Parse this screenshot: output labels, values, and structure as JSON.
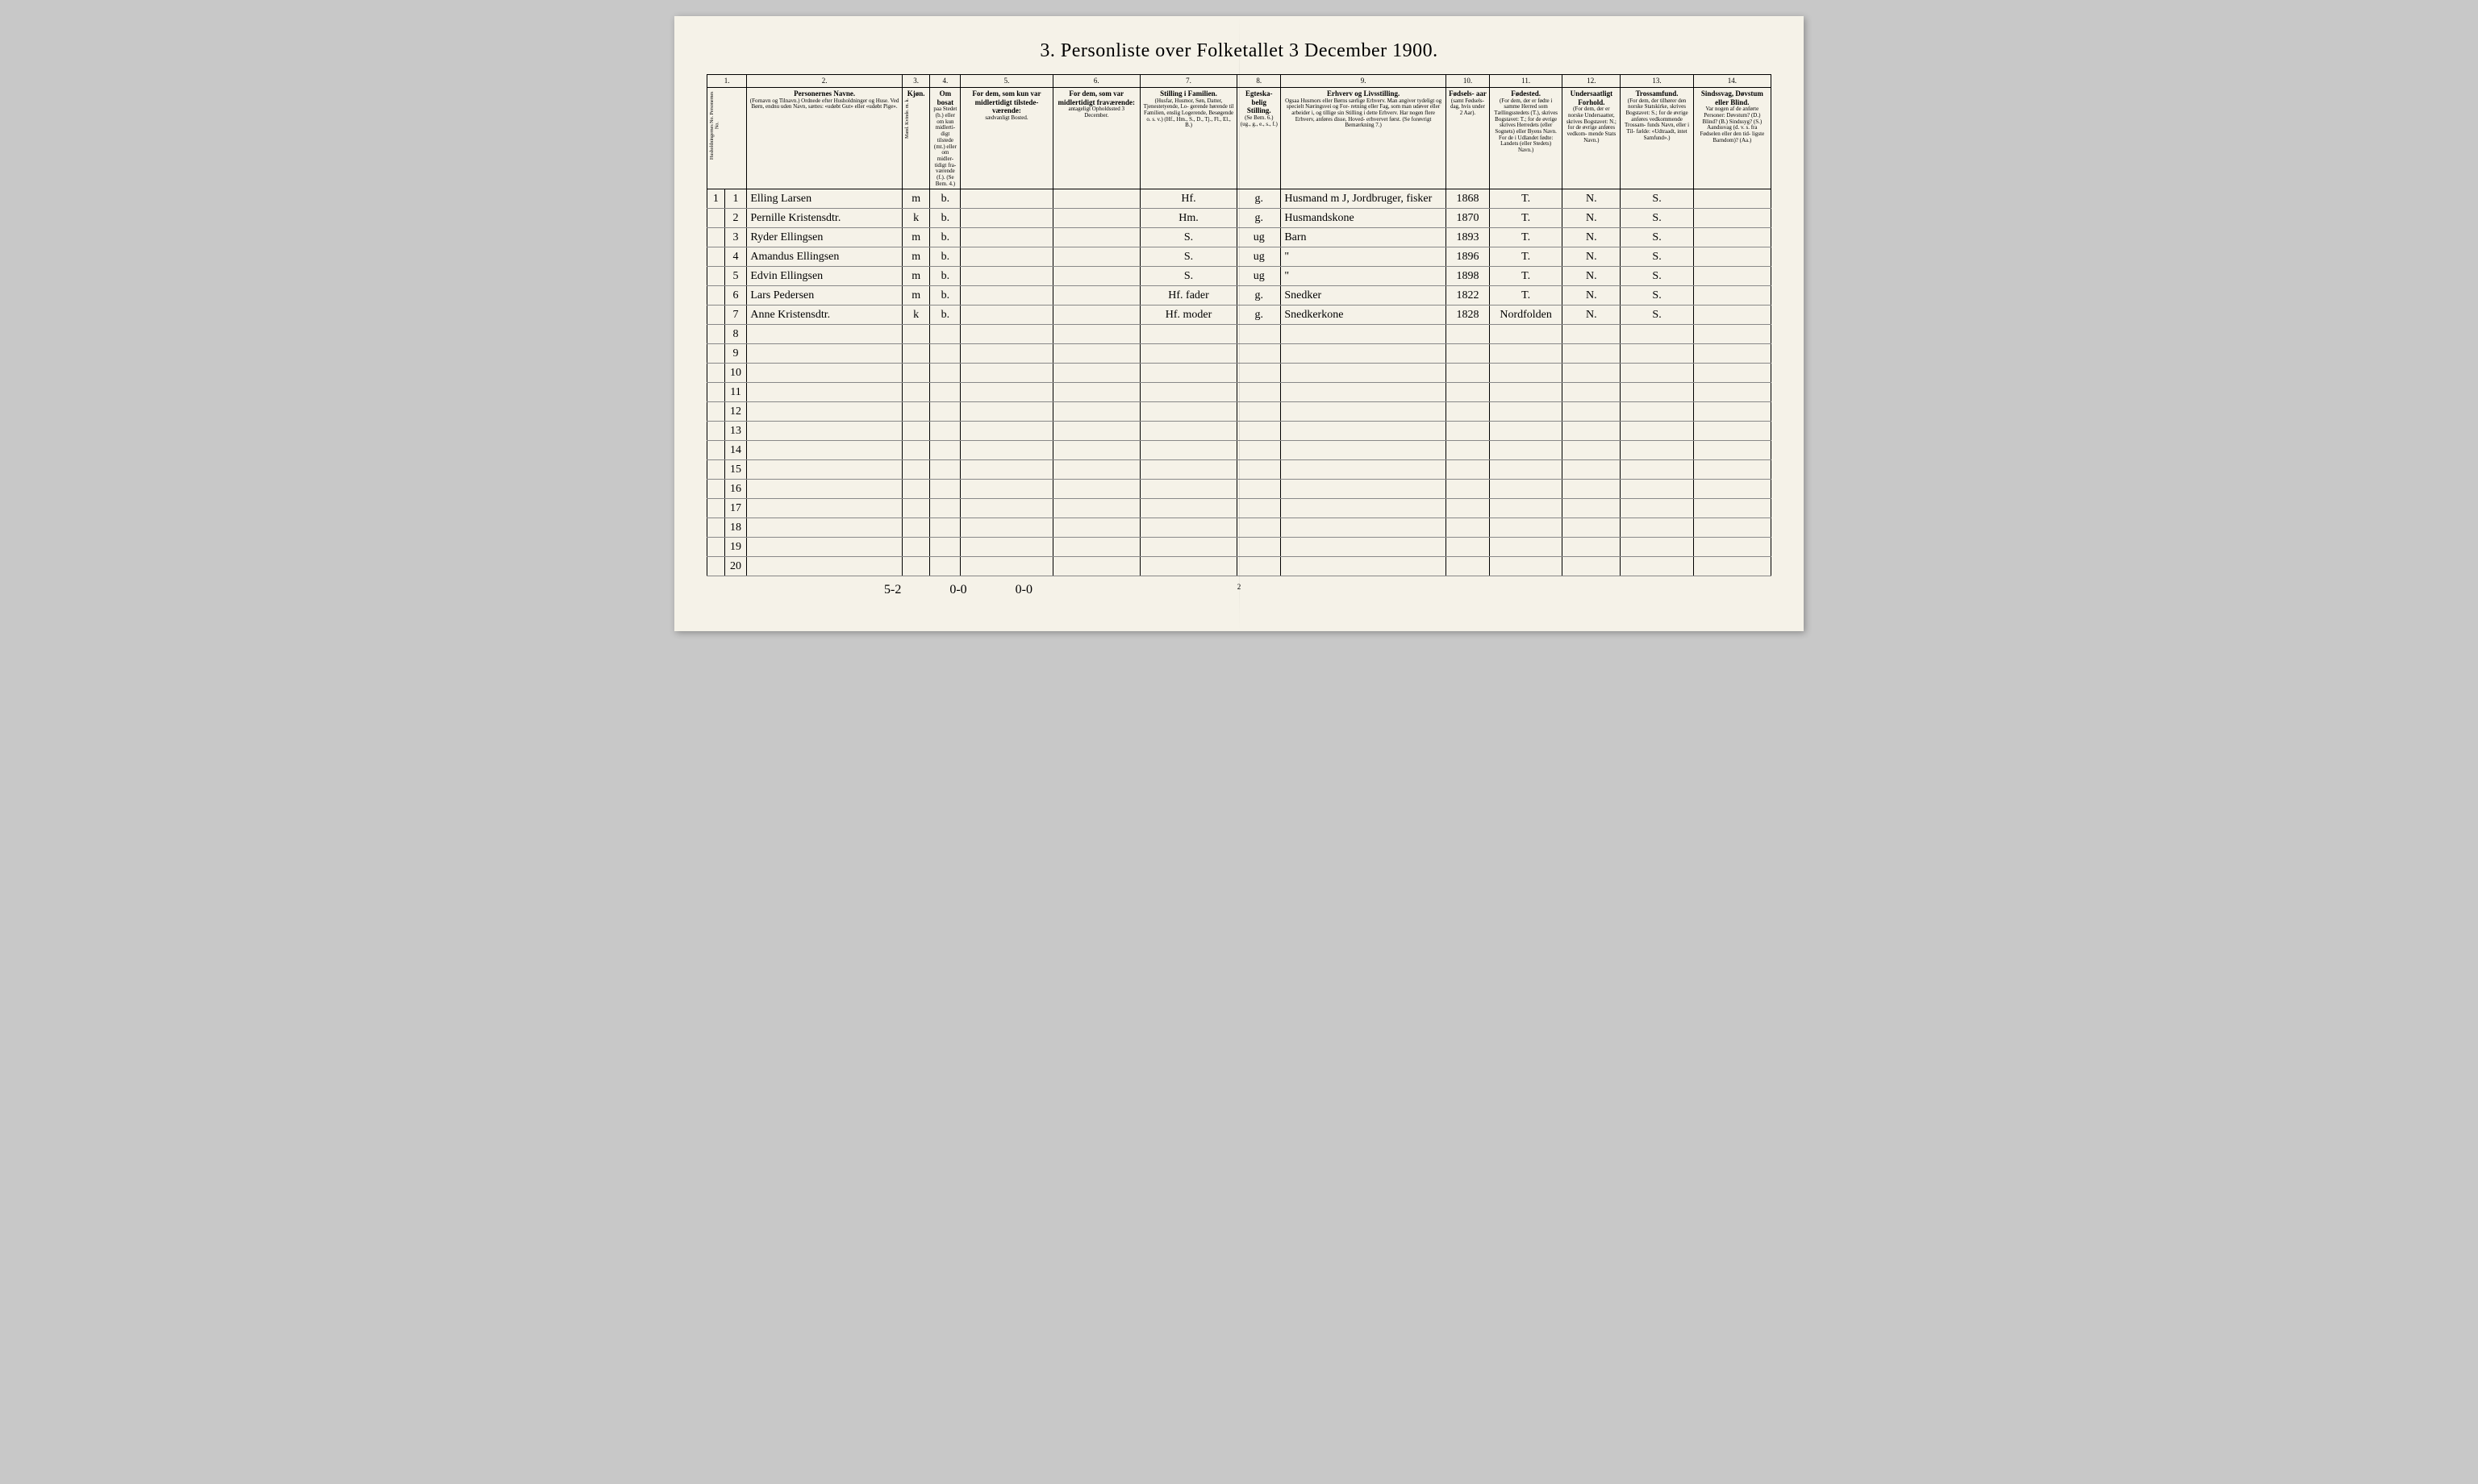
{
  "title": "3. Personliste over Folketallet 3 December 1900.",
  "page_number": "2",
  "background_color": "#f5f2e8",
  "border_color": "#000000",
  "column_numbers": [
    "1.",
    "2.",
    "3.",
    "4.",
    "5.",
    "6.",
    "7.",
    "8.",
    "9.",
    "10.",
    "11.",
    "12.",
    "13.",
    "14."
  ],
  "headers": {
    "col1": {
      "main": "",
      "sub": "Husholdningernes No.\nPersonernes No."
    },
    "col2": {
      "main": "Personernes Navne.",
      "sub": "(Fornavn og Tilnavn.)\nOrdnede efter Husholdninger og Huse.\nVed Børn, endnu uden Navn, sættes: «udøbt Gut»\neller «udøbt Pige»."
    },
    "col3": {
      "main": "Kjøn.",
      "sub": "Mand.\nKvinde.\nm. k."
    },
    "col4": {
      "main": "Om bosat",
      "sub": "paa Stedet\n(b.) eller om\nkun midlerti-\ndigt tilstede\n(mt.) eller\nom midler-\ntidigt fra-\nværende (f.).\n(Se Bem. 4.)"
    },
    "col5": {
      "main": "For dem, som kun var\nmidlertidigt tilstede-\nværende:",
      "sub": "sædvanligt Bosted."
    },
    "col6": {
      "main": "For dem, som var\nmidlertidigt\nfraværende:",
      "sub": "antageligt Opholdssted\n3 December."
    },
    "col7": {
      "main": "Stilling i Familien.",
      "sub": "(Husfar, Husmor, Søn,\nDatter, Tjenestetyende, Lo-\ngerende hørende til Familien,\nenslig Logerende, Besøgende\no. s. v.)\n(Hf., Hm., S., D., Tj., Fl.,\nEl., B.)"
    },
    "col8": {
      "main": "Egteska-\nbelig\nStilling.",
      "sub": "(Se Bem. 6.)\n(ug., g.,\ne., s., f.)"
    },
    "col9": {
      "main": "Erhverv og Livsstilling.",
      "sub": "Ogsaa Husmors eller Børns særlige Erhverv.\nMan angiver tydeligt og specielt Næringsvei og For-\nretning eller Fag, som man udøver eller arbeider i,\nog tillige sin Stilling i dette Erhverv.\nHar nogen flere Erhverv, anføres disse, Hoved-\nerhvervet først.\n(Se forøvrigt Bemærkning 7.)"
    },
    "col10": {
      "main": "Fødsels-\naar",
      "sub": "(samt\nFødsels-\ndag, hvis\nunder\n2 Aar)."
    },
    "col11": {
      "main": "Fødested.",
      "sub": "(For dem, der er fødte\ni samme Herred som\nTællingsstedets (T.),\nskrives Bogstavet: T.;\nfor de øvrige skrives\nHerredets (eller Sognets)\neller Byens Navn.\nFor de i Udlandet fødte:\nLandets (eller Stedets)\nNavn.)"
    },
    "col12": {
      "main": "Undersaatligt\nForhold.",
      "sub": "(For dem, der er\nnorske Undersaatter,\nskrives Bogstavet:\nN.; for de øvrige\nanføres vedkom-\nmende Stats Navn.)"
    },
    "col13": {
      "main": "Trossamfund.",
      "sub": "(For dem, der tilhører\nden norske Statskirke,\nskrives Bogstavet: S.;\nfor de øvrige anføres\nvedkommende Trossam-\nfunds Navn, eller i Til-\nfælde: «Udtraadt, intet\nSamfund».)"
    },
    "col14": {
      "main": "Sindssvag, Døvstum\neller Blind.",
      "sub": "Var nogen af de anførte\nPersoner:\nDøvstum? (D.)\nBlind? (B.)\nSindssyg? (S.)\nAandssvag (d. v. s. fra\nFødselen eller den tid-\nligste Barndom)? (Aa.)"
    }
  },
  "rows": [
    {
      "hh": "1",
      "no": "1",
      "name": "Elling Larsen",
      "sex": "m",
      "resident": "b.",
      "c5": "",
      "c6": "",
      "c7": "Hf.",
      "c8": "g.",
      "c9": "Husmand m J, Jordbruger, fisker",
      "c10": "1868",
      "c11": "T.",
      "c12": "N.",
      "c13": "S.",
      "c14": ""
    },
    {
      "hh": "",
      "no": "2",
      "name": "Pernille Kristensdtr.",
      "sex": "k",
      "resident": "b.",
      "c5": "",
      "c6": "",
      "c7": "Hm.",
      "c8": "g.",
      "c9": "Husmandskone",
      "c10": "1870",
      "c11": "T.",
      "c12": "N.",
      "c13": "S.",
      "c14": ""
    },
    {
      "hh": "",
      "no": "3",
      "name": "Ryder Ellingsen",
      "sex": "m",
      "resident": "b.",
      "c5": "",
      "c6": "",
      "c7": "S.",
      "c8": "ug",
      "c9": "Barn",
      "c10": "1893",
      "c11": "T.",
      "c12": "N.",
      "c13": "S.",
      "c14": ""
    },
    {
      "hh": "",
      "no": "4",
      "name": "Amandus Ellingsen",
      "sex": "m",
      "resident": "b.",
      "c5": "",
      "c6": "",
      "c7": "S.",
      "c8": "ug",
      "c9": "\"",
      "c10": "1896",
      "c11": "T.",
      "c12": "N.",
      "c13": "S.",
      "c14": ""
    },
    {
      "hh": "",
      "no": "5",
      "name": "Edvin Ellingsen",
      "sex": "m",
      "resident": "b.",
      "c5": "",
      "c6": "",
      "c7": "S.",
      "c8": "ug",
      "c9": "\"",
      "c10": "1898",
      "c11": "T.",
      "c12": "N.",
      "c13": "S.",
      "c14": ""
    },
    {
      "hh": "",
      "no": "6",
      "name": "Lars Pedersen",
      "sex": "m",
      "resident": "b.",
      "c5": "",
      "c6": "",
      "c7": "Hf. fader",
      "c8": "g.",
      "c9": "Snedker",
      "c10": "1822",
      "c11": "T.",
      "c12": "N.",
      "c13": "S.",
      "c14": ""
    },
    {
      "hh": "",
      "no": "7",
      "name": "Anne Kristensdtr.",
      "sex": "k",
      "resident": "b.",
      "c5": "",
      "c6": "",
      "c7": "Hf. moder",
      "c8": "g.",
      "c9": "Snedkerkone",
      "c10": "1828",
      "c11": "Nordfolden",
      "c12": "N.",
      "c13": "S.",
      "c14": ""
    }
  ],
  "empty_row_count": 13,
  "bottom_notes": [
    "5-2",
    "0-0",
    "0-0"
  ]
}
